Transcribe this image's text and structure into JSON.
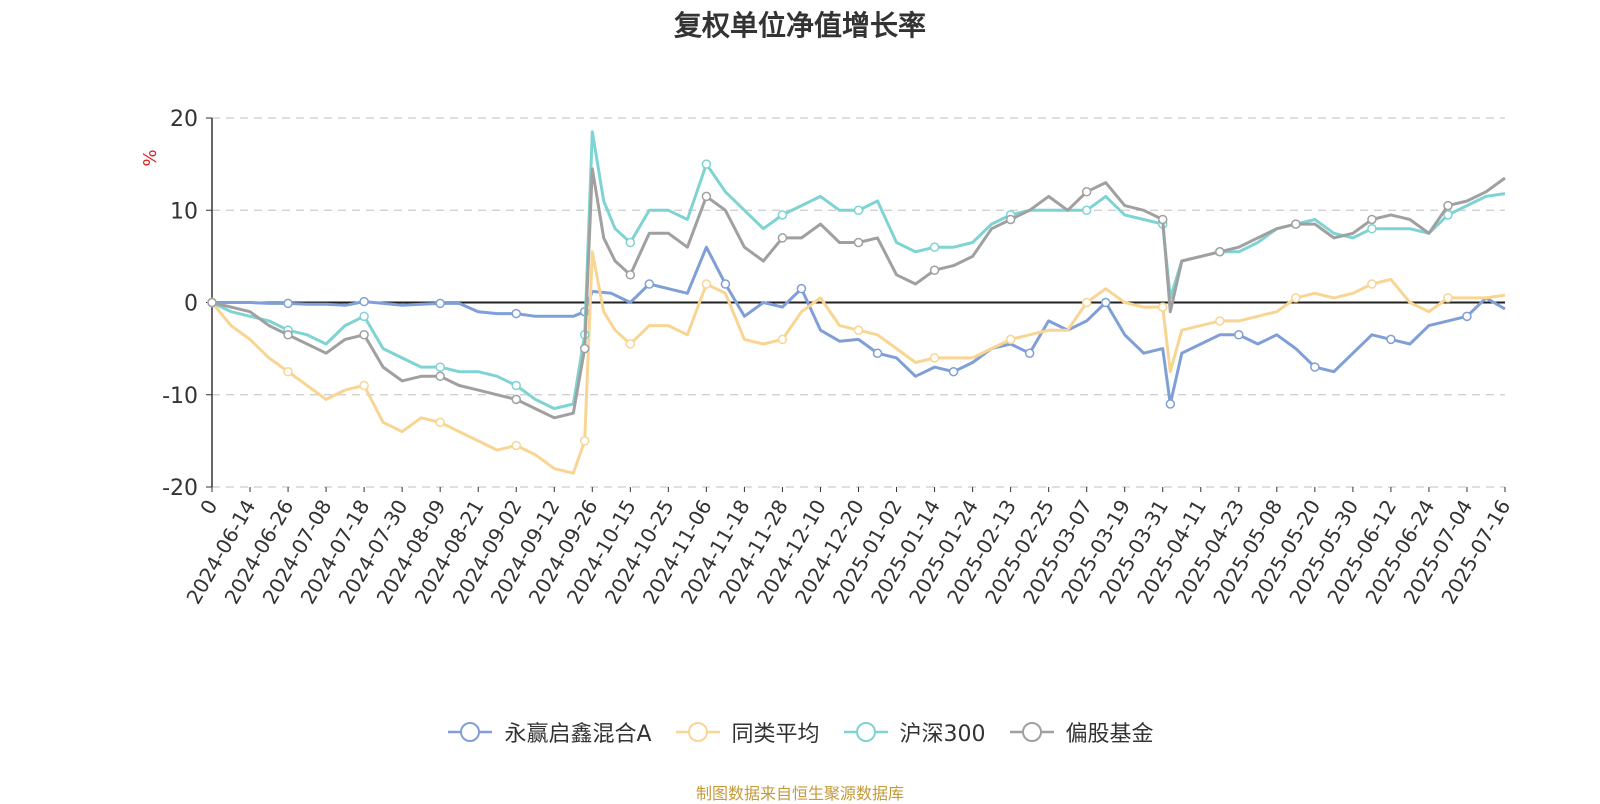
{
  "chart_data": {
    "type": "line",
    "title": "复权单位净值增长率",
    "ylabel": "%",
    "ylim": [
      -20,
      20
    ],
    "yticks": [
      20,
      10,
      0,
      -10,
      -20
    ],
    "grid": true,
    "legend_position": "bottom",
    "x_ticks": [
      "0",
      "2024-06-14",
      "2024-06-26",
      "2024-07-08",
      "2024-07-18",
      "2024-07-30",
      "2024-08-09",
      "2024-08-21",
      "2024-09-02",
      "2024-09-12",
      "2024-09-26",
      "2024-10-15",
      "2024-10-25",
      "2024-11-06",
      "2024-11-18",
      "2024-11-28",
      "2024-12-10",
      "2024-12-20",
      "2025-01-02",
      "2025-01-14",
      "2025-01-24",
      "2025-02-13",
      "2025-02-25",
      "2025-03-07",
      "2025-03-19",
      "2025-03-31",
      "2025-04-11",
      "2025-04-23",
      "2025-05-08",
      "2025-05-20",
      "2025-05-30",
      "2025-06-12",
      "2025-06-24",
      "2025-07-04",
      "2025-07-16"
    ],
    "series": [
      {
        "name": "永赢启鑫混合A",
        "color": "#7f9fd6",
        "points": [
          [
            0,
            0
          ],
          [
            0.5,
            0
          ],
          [
            1,
            0
          ],
          [
            1.5,
            -0.1
          ],
          [
            2,
            -0.1
          ],
          [
            2.5,
            -0.2
          ],
          [
            3,
            -0.2
          ],
          [
            3.5,
            -0.3
          ],
          [
            4,
            0.1
          ],
          [
            4.5,
            -0.1
          ],
          [
            5,
            -0.3
          ],
          [
            5.5,
            -0.2
          ],
          [
            6,
            -0.1
          ],
          [
            6.5,
            -0.1
          ],
          [
            7,
            -1.0
          ],
          [
            7.5,
            -1.2
          ],
          [
            8,
            -1.2
          ],
          [
            8.5,
            -1.5
          ],
          [
            9,
            -1.5
          ],
          [
            9.5,
            -1.5
          ],
          [
            9.8,
            -1.0
          ],
          [
            10,
            1.2
          ],
          [
            10.5,
            1.0
          ],
          [
            11,
            0
          ],
          [
            11.5,
            2.0
          ],
          [
            12,
            1.5
          ],
          [
            12.5,
            1.0
          ],
          [
            13,
            6.0
          ],
          [
            13.5,
            2.0
          ],
          [
            14,
            -1.5
          ],
          [
            14.5,
            0.0
          ],
          [
            15,
            -0.5
          ],
          [
            15.5,
            1.5
          ],
          [
            16,
            -3.0
          ],
          [
            16.5,
            -4.2
          ],
          [
            17,
            -4.0
          ],
          [
            17.5,
            -5.5
          ],
          [
            18,
            -6.0
          ],
          [
            18.5,
            -8.0
          ],
          [
            19,
            -7.0
          ],
          [
            19.5,
            -7.5
          ],
          [
            20,
            -6.5
          ],
          [
            20.5,
            -5.0
          ],
          [
            21,
            -4.5
          ],
          [
            21.5,
            -5.5
          ],
          [
            22,
            -2.0
          ],
          [
            22.5,
            -3.0
          ],
          [
            23,
            -2.0
          ],
          [
            23.5,
            0
          ],
          [
            24,
            -3.5
          ],
          [
            24.5,
            -5.5
          ],
          [
            25,
            -5.0
          ],
          [
            25.2,
            -11.0
          ],
          [
            25.5,
            -5.5
          ],
          [
            26,
            -4.5
          ],
          [
            26.5,
            -3.5
          ],
          [
            27,
            -3.5
          ],
          [
            27.5,
            -4.5
          ],
          [
            28,
            -3.5
          ],
          [
            28.5,
            -5.0
          ],
          [
            29,
            -7.0
          ],
          [
            29.5,
            -7.5
          ],
          [
            30,
            -5.5
          ],
          [
            30.5,
            -3.5
          ],
          [
            31,
            -4.0
          ],
          [
            31.5,
            -4.5
          ],
          [
            32,
            -2.5
          ],
          [
            32.5,
            -2.0
          ],
          [
            33,
            -1.5
          ],
          [
            33.5,
            0.5
          ],
          [
            34,
            -0.7
          ]
        ]
      },
      {
        "name": "同类平均",
        "color": "#f9d593",
        "points": [
          [
            0,
            0
          ],
          [
            0.5,
            -2.5
          ],
          [
            1,
            -4.0
          ],
          [
            1.5,
            -6.0
          ],
          [
            2,
            -7.5
          ],
          [
            2.5,
            -9.0
          ],
          [
            3,
            -10.5
          ],
          [
            3.5,
            -9.5
          ],
          [
            4,
            -9.0
          ],
          [
            4.5,
            -13.0
          ],
          [
            5,
            -14.0
          ],
          [
            5.5,
            -12.5
          ],
          [
            6,
            -13.0
          ],
          [
            6.5,
            -14.0
          ],
          [
            7,
            -15.0
          ],
          [
            7.5,
            -16.0
          ],
          [
            8,
            -15.5
          ],
          [
            8.5,
            -16.5
          ],
          [
            9,
            -18.0
          ],
          [
            9.5,
            -18.5
          ],
          [
            9.8,
            -15.0
          ],
          [
            10,
            5.5
          ],
          [
            10.3,
            -1.0
          ],
          [
            10.6,
            -3.0
          ],
          [
            11,
            -4.5
          ],
          [
            11.5,
            -2.5
          ],
          [
            12,
            -2.5
          ],
          [
            12.5,
            -3.5
          ],
          [
            13,
            2.0
          ],
          [
            13.5,
            1.0
          ],
          [
            14,
            -4.0
          ],
          [
            14.5,
            -4.5
          ],
          [
            15,
            -4.0
          ],
          [
            15.5,
            -1.0
          ],
          [
            16,
            0.5
          ],
          [
            16.5,
            -2.5
          ],
          [
            17,
            -3.0
          ],
          [
            17.5,
            -3.5
          ],
          [
            18,
            -5.0
          ],
          [
            18.5,
            -6.5
          ],
          [
            19,
            -6.0
          ],
          [
            19.5,
            -6.0
          ],
          [
            20,
            -6.0
          ],
          [
            20.5,
            -5.0
          ],
          [
            21,
            -4.0
          ],
          [
            21.5,
            -3.5
          ],
          [
            22,
            -3.0
          ],
          [
            22.5,
            -3.0
          ],
          [
            23,
            0
          ],
          [
            23.5,
            1.5
          ],
          [
            24,
            0
          ],
          [
            24.5,
            -0.5
          ],
          [
            25,
            -0.5
          ],
          [
            25.2,
            -7.5
          ],
          [
            25.5,
            -3.0
          ],
          [
            26,
            -2.5
          ],
          [
            26.5,
            -2.0
          ],
          [
            27,
            -2.0
          ],
          [
            27.5,
            -1.5
          ],
          [
            28,
            -1.0
          ],
          [
            28.5,
            0.5
          ],
          [
            29,
            1.0
          ],
          [
            29.5,
            0.5
          ],
          [
            30,
            1.0
          ],
          [
            30.5,
            2.0
          ],
          [
            31,
            2.5
          ],
          [
            31.5,
            0
          ],
          [
            32,
            -1.0
          ],
          [
            32.5,
            0.5
          ],
          [
            33,
            0.5
          ],
          [
            33.5,
            0.5
          ],
          [
            34,
            0.8
          ]
        ]
      },
      {
        "name": "沪深300",
        "color": "#7fd3d3",
        "points": [
          [
            0,
            0
          ],
          [
            0.5,
            -1.0
          ],
          [
            1,
            -1.5
          ],
          [
            1.5,
            -2.0
          ],
          [
            2,
            -3.0
          ],
          [
            2.5,
            -3.5
          ],
          [
            3,
            -4.5
          ],
          [
            3.5,
            -2.5
          ],
          [
            4,
            -1.5
          ],
          [
            4.5,
            -5.0
          ],
          [
            5,
            -6.0
          ],
          [
            5.5,
            -7.0
          ],
          [
            6,
            -7.0
          ],
          [
            6.5,
            -7.5
          ],
          [
            7,
            -7.5
          ],
          [
            7.5,
            -8.0
          ],
          [
            8,
            -9.0
          ],
          [
            8.5,
            -10.5
          ],
          [
            9,
            -11.5
          ],
          [
            9.5,
            -11.0
          ],
          [
            9.8,
            -3.5
          ],
          [
            10,
            18.5
          ],
          [
            10.3,
            11.0
          ],
          [
            10.6,
            8.0
          ],
          [
            11,
            6.5
          ],
          [
            11.5,
            10.0
          ],
          [
            12,
            10.0
          ],
          [
            12.5,
            9.0
          ],
          [
            13,
            15.0
          ],
          [
            13.5,
            12.0
          ],
          [
            14,
            10.0
          ],
          [
            14.5,
            8.0
          ],
          [
            15,
            9.5
          ],
          [
            15.5,
            10.5
          ],
          [
            16,
            11.5
          ],
          [
            16.5,
            10.0
          ],
          [
            17,
            10.0
          ],
          [
            17.5,
            11.0
          ],
          [
            18,
            6.5
          ],
          [
            18.5,
            5.5
          ],
          [
            19,
            6.0
          ],
          [
            19.5,
            6.0
          ],
          [
            20,
            6.5
          ],
          [
            20.5,
            8.5
          ],
          [
            21,
            9.5
          ],
          [
            21.5,
            10.0
          ],
          [
            22,
            10.0
          ],
          [
            22.5,
            10.0
          ],
          [
            23,
            10.0
          ],
          [
            23.5,
            11.5
          ],
          [
            24,
            9.5
          ],
          [
            24.5,
            9.0
          ],
          [
            25,
            8.5
          ],
          [
            25.2,
            0.5
          ],
          [
            25.5,
            4.5
          ],
          [
            26,
            5.0
          ],
          [
            26.5,
            5.5
          ],
          [
            27,
            5.5
          ],
          [
            27.5,
            6.5
          ],
          [
            28,
            8.0
          ],
          [
            28.5,
            8.5
          ],
          [
            29,
            9.0
          ],
          [
            29.5,
            7.5
          ],
          [
            30,
            7.0
          ],
          [
            30.5,
            8.0
          ],
          [
            31,
            8.0
          ],
          [
            31.5,
            8.0
          ],
          [
            32,
            7.5
          ],
          [
            32.5,
            9.5
          ],
          [
            33,
            10.5
          ],
          [
            33.5,
            11.5
          ],
          [
            34,
            11.8
          ]
        ]
      },
      {
        "name": "偏股基金",
        "color": "#a0a0a0",
        "points": [
          [
            0,
            0
          ],
          [
            0.5,
            -0.5
          ],
          [
            1,
            -1.0
          ],
          [
            1.5,
            -2.5
          ],
          [
            2,
            -3.5
          ],
          [
            2.5,
            -4.5
          ],
          [
            3,
            -5.5
          ],
          [
            3.5,
            -4.0
          ],
          [
            4,
            -3.5
          ],
          [
            4.5,
            -7.0
          ],
          [
            5,
            -8.5
          ],
          [
            5.5,
            -8.0
          ],
          [
            6,
            -8.0
          ],
          [
            6.5,
            -9.0
          ],
          [
            7,
            -9.5
          ],
          [
            7.5,
            -10.0
          ],
          [
            8,
            -10.5
          ],
          [
            8.5,
            -11.5
          ],
          [
            9,
            -12.5
          ],
          [
            9.5,
            -12.0
          ],
          [
            9.8,
            -5.0
          ],
          [
            10,
            14.5
          ],
          [
            10.3,
            7.0
          ],
          [
            10.6,
            4.5
          ],
          [
            11,
            3.0
          ],
          [
            11.5,
            7.5
          ],
          [
            12,
            7.5
          ],
          [
            12.5,
            6.0
          ],
          [
            13,
            11.5
          ],
          [
            13.5,
            10.0
          ],
          [
            14,
            6.0
          ],
          [
            14.5,
            4.5
          ],
          [
            15,
            7.0
          ],
          [
            15.5,
            7.0
          ],
          [
            16,
            8.5
          ],
          [
            16.5,
            6.5
          ],
          [
            17,
            6.5
          ],
          [
            17.5,
            7.0
          ],
          [
            18,
            3.0
          ],
          [
            18.5,
            2.0
          ],
          [
            19,
            3.5
          ],
          [
            19.5,
            4.0
          ],
          [
            20,
            5.0
          ],
          [
            20.5,
            8.0
          ],
          [
            21,
            9.0
          ],
          [
            21.5,
            10.0
          ],
          [
            22,
            11.5
          ],
          [
            22.5,
            10.0
          ],
          [
            23,
            12.0
          ],
          [
            23.5,
            13.0
          ],
          [
            24,
            10.5
          ],
          [
            24.5,
            10.0
          ],
          [
            25,
            9.0
          ],
          [
            25.2,
            -1.0
          ],
          [
            25.5,
            4.5
          ],
          [
            26,
            5.0
          ],
          [
            26.5,
            5.5
          ],
          [
            27,
            6.0
          ],
          [
            27.5,
            7.0
          ],
          [
            28,
            8.0
          ],
          [
            28.5,
            8.5
          ],
          [
            29,
            8.5
          ],
          [
            29.5,
            7.0
          ],
          [
            30,
            7.5
          ],
          [
            30.5,
            9.0
          ],
          [
            31,
            9.5
          ],
          [
            31.5,
            9.0
          ],
          [
            32,
            7.5
          ],
          [
            32.5,
            10.5
          ],
          [
            33,
            11.0
          ],
          [
            33.5,
            12.0
          ],
          [
            34,
            13.5
          ]
        ]
      }
    ]
  },
  "legend": {
    "items": [
      "永赢启鑫混合A",
      "同类平均",
      "沪深300",
      "偏股基金"
    ]
  },
  "source_note": "制图数据来自恒生聚源数据库"
}
